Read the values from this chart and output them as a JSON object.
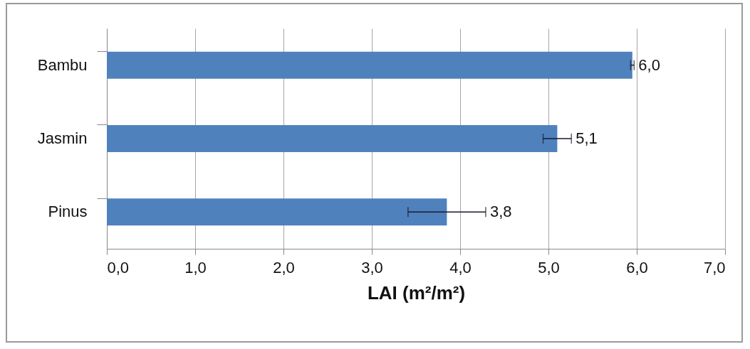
{
  "chart_data": {
    "type": "bar",
    "orientation": "horizontal",
    "xlabel": "LAI (m²/m²)",
    "categories": [
      "Bambu",
      "Jasmin",
      "Pinus"
    ],
    "values": [
      5.95,
      5.1,
      3.85
    ],
    "errors": [
      0.02,
      0.16,
      0.44
    ],
    "value_labels": [
      "6,0",
      "5,1",
      "3,8"
    ],
    "color": "#4f81bd",
    "xlim": [
      0,
      7
    ],
    "xticks": [
      {
        "value": 0,
        "label": "0,0"
      },
      {
        "value": 1,
        "label": "1,0"
      },
      {
        "value": 2,
        "label": "2,0"
      },
      {
        "value": 3,
        "label": "3,0"
      },
      {
        "value": 4,
        "label": "4,0"
      },
      {
        "value": 5,
        "label": "5,0"
      },
      {
        "value": 6,
        "label": "6,0"
      },
      {
        "value": 7,
        "label": "7,0"
      }
    ],
    "grid": true
  }
}
